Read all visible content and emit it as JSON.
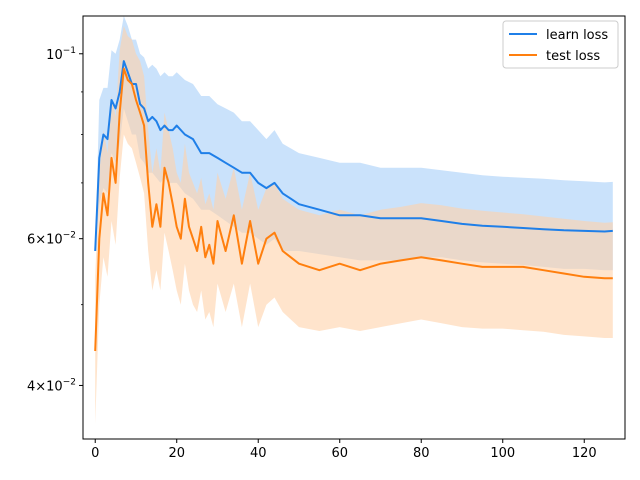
{
  "chart_data": {
    "type": "line",
    "title": "",
    "xlabel": "",
    "ylabel": "",
    "yscale": "log",
    "xlim": [
      -3,
      130
    ],
    "ylim": [
      0.0345,
      0.111
    ],
    "x_ticks": [
      0,
      20,
      40,
      60,
      80,
      100,
      120
    ],
    "x_tick_labels": [
      "0",
      "20",
      "40",
      "60",
      "80",
      "100",
      "120"
    ],
    "y_ticks": [
      0.04,
      0.06,
      0.1
    ],
    "y_tick_labels": [
      {
        "base": "4",
        "times": "×",
        "power": "10",
        "exp": "−2"
      },
      {
        "base": "6",
        "times": "×",
        "power": "10",
        "exp": "−2"
      },
      {
        "base": "10",
        "times": "",
        "power": "",
        "exp": "−1"
      }
    ],
    "legend_position": "top-right",
    "grid": false,
    "series": [
      {
        "name": "learn loss",
        "color": "#1f7fe8",
        "band_color": "#a6cff8",
        "x": [
          0,
          1,
          2,
          3,
          4,
          5,
          6,
          7,
          8,
          9,
          10,
          11,
          12,
          13,
          14,
          15,
          16,
          17,
          18,
          19,
          20,
          22,
          24,
          26,
          28,
          30,
          32,
          34,
          36,
          38,
          40,
          42,
          44,
          46,
          48,
          50,
          55,
          60,
          65,
          70,
          75,
          80,
          85,
          90,
          95,
          100,
          105,
          110,
          115,
          120,
          125,
          127
        ],
        "y": [
          0.058,
          0.075,
          0.08,
          0.079,
          0.088,
          0.086,
          0.09,
          0.098,
          0.095,
          0.092,
          0.092,
          0.087,
          0.086,
          0.083,
          0.084,
          0.083,
          0.081,
          0.082,
          0.081,
          0.081,
          0.082,
          0.08,
          0.079,
          0.076,
          0.076,
          0.075,
          0.074,
          0.073,
          0.072,
          0.072,
          0.07,
          0.069,
          0.07,
          0.068,
          0.067,
          0.066,
          0.065,
          0.064,
          0.064,
          0.0635,
          0.0635,
          0.0635,
          0.063,
          0.0625,
          0.0622,
          0.062,
          0.0618,
          0.0616,
          0.0614,
          0.0613,
          0.0612,
          0.0613
        ],
        "lower": [
          0.058,
          0.066,
          0.069,
          0.068,
          0.076,
          0.074,
          0.078,
          0.086,
          0.083,
          0.08,
          0.08,
          0.075,
          0.074,
          0.072,
          0.072,
          0.071,
          0.07,
          0.071,
          0.07,
          0.07,
          0.07,
          0.068,
          0.067,
          0.065,
          0.065,
          0.064,
          0.063,
          0.062,
          0.061,
          0.061,
          0.06,
          0.059,
          0.06,
          0.058,
          0.058,
          0.058,
          0.0575,
          0.057,
          0.0565,
          0.0565,
          0.0565,
          0.057,
          0.057,
          0.0565,
          0.0562,
          0.056,
          0.0558,
          0.0555,
          0.0552,
          0.0552,
          0.055,
          0.055
        ],
        "upper": [
          0.058,
          0.088,
          0.091,
          0.091,
          0.101,
          0.1,
          0.104,
          0.111,
          0.108,
          0.104,
          0.104,
          0.1,
          0.099,
          0.096,
          0.097,
          0.096,
          0.094,
          0.095,
          0.094,
          0.094,
          0.095,
          0.093,
          0.092,
          0.089,
          0.089,
          0.087,
          0.086,
          0.085,
          0.083,
          0.083,
          0.081,
          0.079,
          0.081,
          0.078,
          0.077,
          0.076,
          0.075,
          0.074,
          0.074,
          0.073,
          0.073,
          0.073,
          0.0725,
          0.072,
          0.0715,
          0.0712,
          0.071,
          0.0708,
          0.0705,
          0.0703,
          0.0701,
          0.0702
        ]
      },
      {
        "name": "test loss",
        "color": "#ff7f0e",
        "band_color": "#ffd2aa",
        "x": [
          0,
          1,
          2,
          3,
          4,
          5,
          6,
          7,
          8,
          9,
          10,
          11,
          12,
          13,
          14,
          15,
          16,
          17,
          18,
          19,
          20,
          21,
          22,
          23,
          24,
          25,
          26,
          27,
          28,
          29,
          30,
          32,
          34,
          36,
          38,
          40,
          42,
          44,
          46,
          48,
          50,
          55,
          60,
          65,
          70,
          75,
          80,
          85,
          90,
          95,
          100,
          105,
          110,
          115,
          120,
          125,
          127
        ],
        "y": [
          0.044,
          0.06,
          0.068,
          0.064,
          0.075,
          0.07,
          0.085,
          0.096,
          0.093,
          0.092,
          0.088,
          0.085,
          0.082,
          0.07,
          0.062,
          0.066,
          0.062,
          0.073,
          0.07,
          0.066,
          0.062,
          0.06,
          0.067,
          0.062,
          0.06,
          0.058,
          0.062,
          0.057,
          0.059,
          0.056,
          0.063,
          0.058,
          0.064,
          0.056,
          0.063,
          0.056,
          0.06,
          0.061,
          0.058,
          0.057,
          0.056,
          0.055,
          0.056,
          0.055,
          0.056,
          0.0565,
          0.057,
          0.0565,
          0.056,
          0.0555,
          0.0555,
          0.0555,
          0.055,
          0.0545,
          0.054,
          0.0538,
          0.0538
        ],
        "lower": [
          0.036,
          0.05,
          0.057,
          0.054,
          0.063,
          0.059,
          0.071,
          0.08,
          0.078,
          0.077,
          0.074,
          0.071,
          0.068,
          0.058,
          0.052,
          0.055,
          0.052,
          0.061,
          0.058,
          0.055,
          0.052,
          0.05,
          0.056,
          0.052,
          0.05,
          0.049,
          0.052,
          0.048,
          0.049,
          0.047,
          0.053,
          0.049,
          0.053,
          0.047,
          0.053,
          0.047,
          0.05,
          0.051,
          0.049,
          0.048,
          0.047,
          0.0465,
          0.047,
          0.0465,
          0.047,
          0.0475,
          0.048,
          0.0475,
          0.047,
          0.0468,
          0.0468,
          0.0466,
          0.0464,
          0.046,
          0.0458,
          0.0456,
          0.0456
        ],
        "upper": [
          0.054,
          0.072,
          0.081,
          0.076,
          0.089,
          0.084,
          0.101,
          0.108,
          0.105,
          0.104,
          0.1,
          0.098,
          0.094,
          0.081,
          0.072,
          0.077,
          0.072,
          0.085,
          0.081,
          0.077,
          0.072,
          0.07,
          0.078,
          0.072,
          0.07,
          0.068,
          0.071,
          0.066,
          0.068,
          0.065,
          0.072,
          0.067,
          0.073,
          0.065,
          0.072,
          0.065,
          0.069,
          0.07,
          0.067,
          0.066,
          0.065,
          0.064,
          0.065,
          0.064,
          0.065,
          0.0655,
          0.0662,
          0.0658,
          0.0652,
          0.0648,
          0.0645,
          0.0642,
          0.0638,
          0.0634,
          0.063,
          0.0627,
          0.0628
        ]
      }
    ]
  }
}
